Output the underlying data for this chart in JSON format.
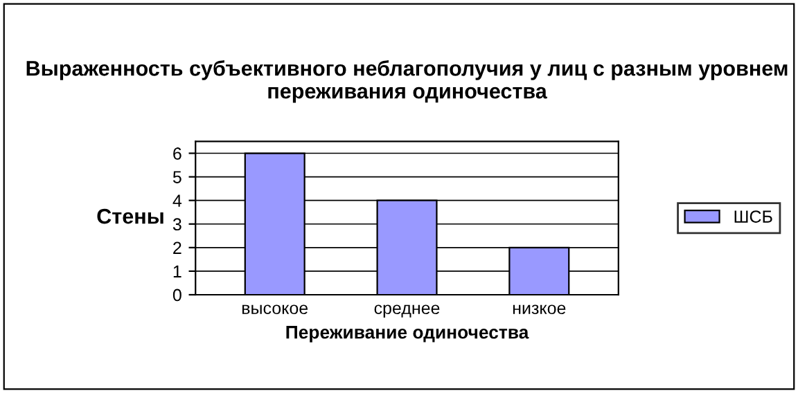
{
  "chart_data": {
    "type": "bar",
    "title": "Выраженность субъективного неблагополучия у лиц с разным уровнем переживания одиночества",
    "xlabel": "Переживание одиночества",
    "ylabel": "Стены",
    "categories": [
      "высокое",
      "среднее",
      "низкое"
    ],
    "series": [
      {
        "name": "ШСБ",
        "color": "#9999ff",
        "values": [
          6,
          4,
          2
        ]
      }
    ],
    "ylim": [
      0,
      6.5
    ],
    "yticks": [
      0,
      1,
      2,
      3,
      4,
      5,
      6
    ],
    "grid": "y",
    "legend": "right"
  }
}
